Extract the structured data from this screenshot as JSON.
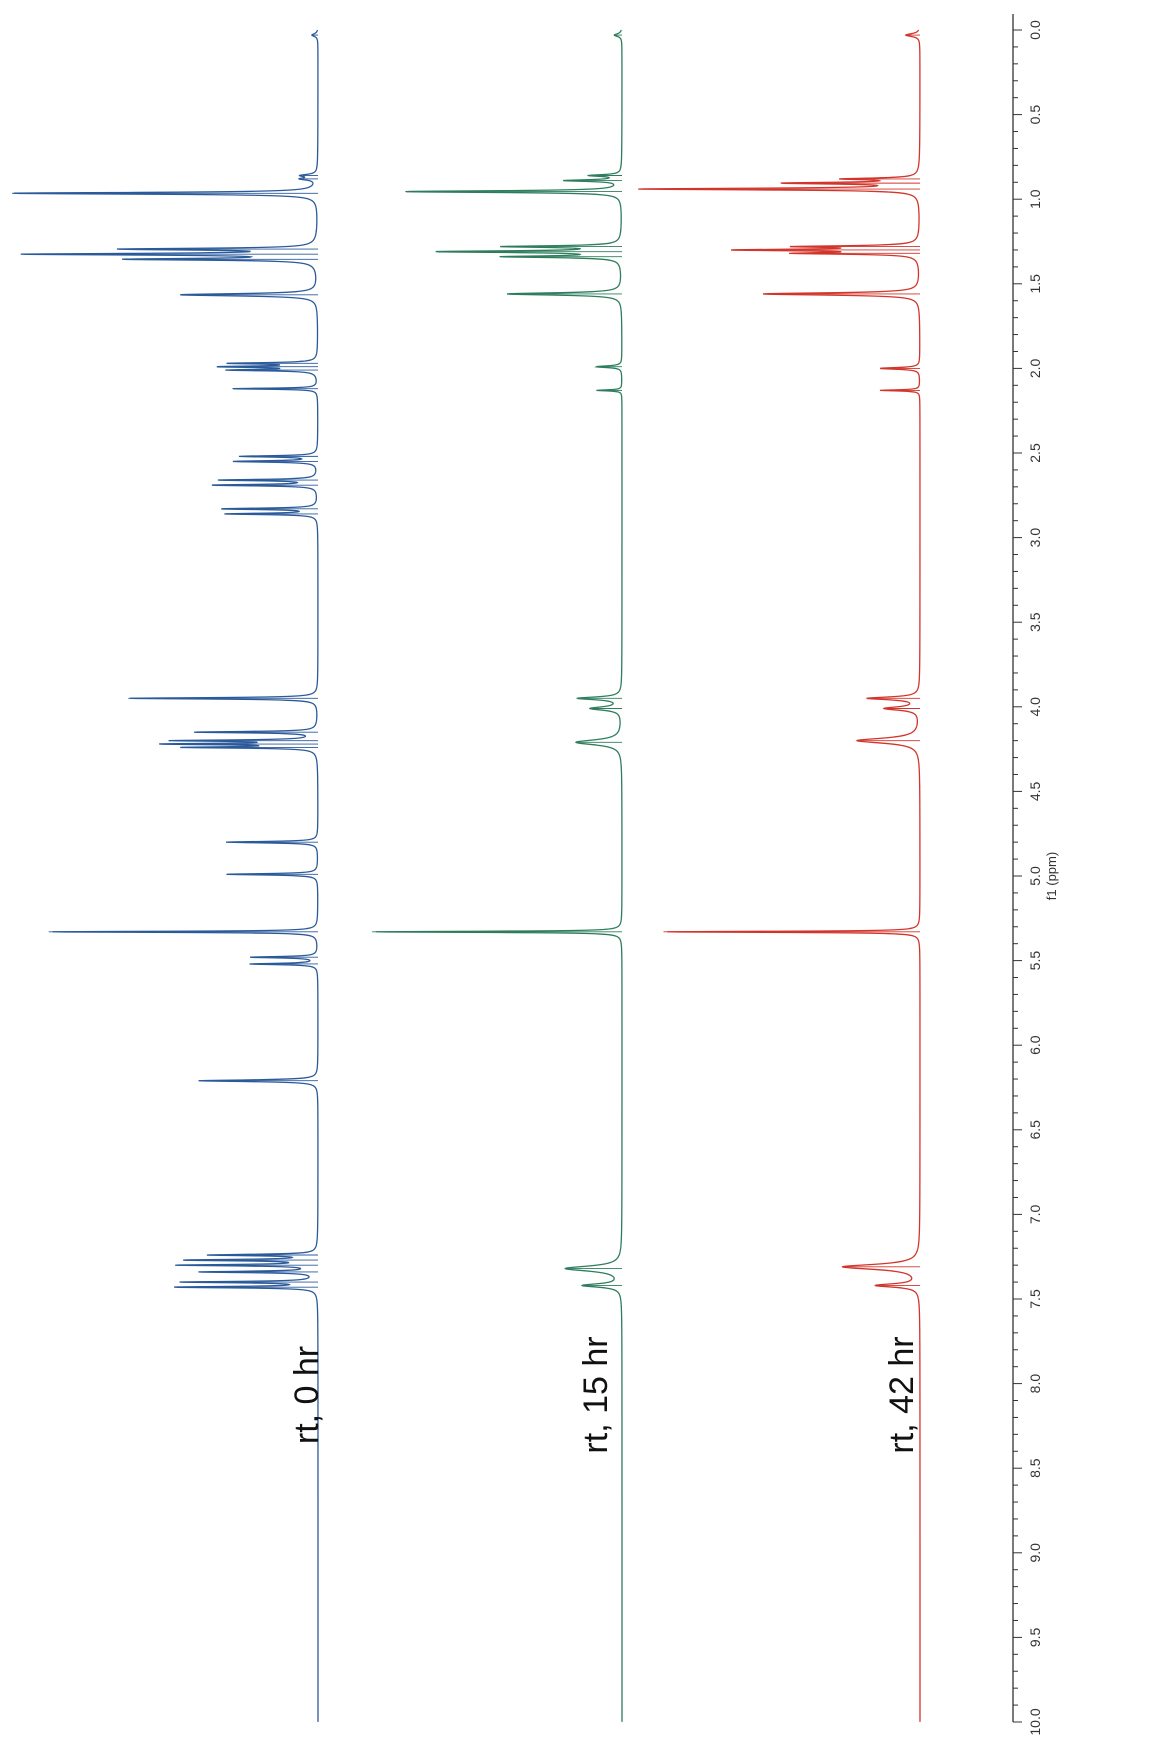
{
  "chart_data": {
    "type": "line",
    "title": "",
    "xlabel": "f1 (ppm)",
    "ylabel": "",
    "xlim": [
      10.0,
      0.0
    ],
    "x_ticks": [
      "0.0",
      "0.5",
      "1.0",
      "1.5",
      "2.0",
      "2.5",
      "3.0",
      "3.5",
      "4.0",
      "4.5",
      "5.0",
      "5.5",
      "6.0",
      "6.5",
      "7.0",
      "7.5",
      "8.0",
      "8.5",
      "9.0",
      "9.5",
      "10.0"
    ],
    "grid": false,
    "legend": "none",
    "orientation": "rotated-90 (ppm axis vertical, intensity horizontal)",
    "series": [
      {
        "label": "rt, 0 hr",
        "color": "#2b5a9a",
        "peaks": [
          {
            "ppm": 0.03,
            "intensity": 0.02,
            "width": 0.01
          },
          {
            "ppm": 0.86,
            "intensity": 0.05,
            "width": 0.008
          },
          {
            "ppm": 0.88,
            "intensity": 0.05,
            "width": 0.008
          },
          {
            "ppm": 0.965,
            "intensity": 1.0,
            "width": 0.006
          },
          {
            "ppm": 1.295,
            "intensity": 0.62,
            "width": 0.006
          },
          {
            "ppm": 1.325,
            "intensity": 0.93,
            "width": 0.006
          },
          {
            "ppm": 1.355,
            "intensity": 0.6,
            "width": 0.006
          },
          {
            "ppm": 1.565,
            "intensity": 0.45,
            "width": 0.008
          },
          {
            "ppm": 1.97,
            "intensity": 0.28,
            "width": 0.005
          },
          {
            "ppm": 1.99,
            "intensity": 0.3,
            "width": 0.005
          },
          {
            "ppm": 2.01,
            "intensity": 0.28,
            "width": 0.005
          },
          {
            "ppm": 2.12,
            "intensity": 0.28,
            "width": 0.004
          },
          {
            "ppm": 2.52,
            "intensity": 0.25,
            "width": 0.005
          },
          {
            "ppm": 2.55,
            "intensity": 0.27,
            "width": 0.005
          },
          {
            "ppm": 2.66,
            "intensity": 0.32,
            "width": 0.005
          },
          {
            "ppm": 2.69,
            "intensity": 0.34,
            "width": 0.005
          },
          {
            "ppm": 2.83,
            "intensity": 0.31,
            "width": 0.005
          },
          {
            "ppm": 2.86,
            "intensity": 0.3,
            "width": 0.005
          },
          {
            "ppm": 3.95,
            "intensity": 0.62,
            "width": 0.005
          },
          {
            "ppm": 4.15,
            "intensity": 0.4,
            "width": 0.005
          },
          {
            "ppm": 4.2,
            "intensity": 0.45,
            "width": 0.005
          },
          {
            "ppm": 4.22,
            "intensity": 0.47,
            "width": 0.005
          },
          {
            "ppm": 4.24,
            "intensity": 0.42,
            "width": 0.005
          },
          {
            "ppm": 4.8,
            "intensity": 0.3,
            "width": 0.005
          },
          {
            "ppm": 4.99,
            "intensity": 0.3,
            "width": 0.005
          },
          {
            "ppm": 5.33,
            "intensity": 0.88,
            "width": 0.004
          },
          {
            "ppm": 5.48,
            "intensity": 0.22,
            "width": 0.005
          },
          {
            "ppm": 5.52,
            "intensity": 0.22,
            "width": 0.005
          },
          {
            "ppm": 6.21,
            "intensity": 0.39,
            "width": 0.006
          },
          {
            "ppm": 7.24,
            "intensity": 0.35,
            "width": 0.005
          },
          {
            "ppm": 7.27,
            "intensity": 0.42,
            "width": 0.005
          },
          {
            "ppm": 7.3,
            "intensity": 0.45,
            "width": 0.005
          },
          {
            "ppm": 7.34,
            "intensity": 0.38,
            "width": 0.005
          },
          {
            "ppm": 7.4,
            "intensity": 0.44,
            "width": 0.005
          },
          {
            "ppm": 7.43,
            "intensity": 0.46,
            "width": 0.005
          }
        ]
      },
      {
        "label": "rt, 15 hr",
        "color": "#2e7d5d",
        "peaks": [
          {
            "ppm": 0.03,
            "intensity": 0.03,
            "width": 0.01
          },
          {
            "ppm": 0.86,
            "intensity": 0.12,
            "width": 0.006
          },
          {
            "ppm": 0.89,
            "intensity": 0.22,
            "width": 0.006
          },
          {
            "ppm": 0.955,
            "intensity": 0.85,
            "width": 0.006
          },
          {
            "ppm": 1.28,
            "intensity": 0.45,
            "width": 0.006
          },
          {
            "ppm": 1.31,
            "intensity": 0.7,
            "width": 0.006
          },
          {
            "ppm": 1.34,
            "intensity": 0.45,
            "width": 0.006
          },
          {
            "ppm": 1.56,
            "intensity": 0.45,
            "width": 0.008
          },
          {
            "ppm": 1.99,
            "intensity": 0.1,
            "width": 0.006
          },
          {
            "ppm": 2.13,
            "intensity": 0.1,
            "width": 0.004
          },
          {
            "ppm": 3.95,
            "intensity": 0.17,
            "width": 0.01
          },
          {
            "ppm": 4.01,
            "intensity": 0.12,
            "width": 0.012
          },
          {
            "ppm": 4.21,
            "intensity": 0.18,
            "width": 0.018
          },
          {
            "ppm": 5.33,
            "intensity": 0.98,
            "width": 0.004
          },
          {
            "ppm": 7.32,
            "intensity": 0.22,
            "width": 0.018
          },
          {
            "ppm": 7.42,
            "intensity": 0.15,
            "width": 0.012
          }
        ]
      },
      {
        "label": "rt, 42 hr",
        "color": "#d2352b",
        "peaks": [
          {
            "ppm": 0.03,
            "intensity": 0.05,
            "width": 0.01
          },
          {
            "ppm": 0.88,
            "intensity": 0.25,
            "width": 0.006
          },
          {
            "ppm": 0.905,
            "intensity": 0.45,
            "width": 0.006
          },
          {
            "ppm": 0.94,
            "intensity": 0.98,
            "width": 0.006
          },
          {
            "ppm": 1.28,
            "intensity": 0.4,
            "width": 0.006
          },
          {
            "ppm": 1.3,
            "intensity": 0.6,
            "width": 0.006
          },
          {
            "ppm": 1.32,
            "intensity": 0.4,
            "width": 0.006
          },
          {
            "ppm": 1.56,
            "intensity": 0.55,
            "width": 0.008
          },
          {
            "ppm": 2.0,
            "intensity": 0.14,
            "width": 0.006
          },
          {
            "ppm": 2.13,
            "intensity": 0.14,
            "width": 0.004
          },
          {
            "ppm": 3.95,
            "intensity": 0.18,
            "width": 0.01
          },
          {
            "ppm": 4.01,
            "intensity": 0.12,
            "width": 0.012
          },
          {
            "ppm": 4.2,
            "intensity": 0.22,
            "width": 0.018
          },
          {
            "ppm": 5.33,
            "intensity": 0.9,
            "width": 0.004
          },
          {
            "ppm": 7.31,
            "intensity": 0.27,
            "width": 0.018
          },
          {
            "ppm": 7.42,
            "intensity": 0.15,
            "width": 0.012
          }
        ]
      }
    ]
  }
}
